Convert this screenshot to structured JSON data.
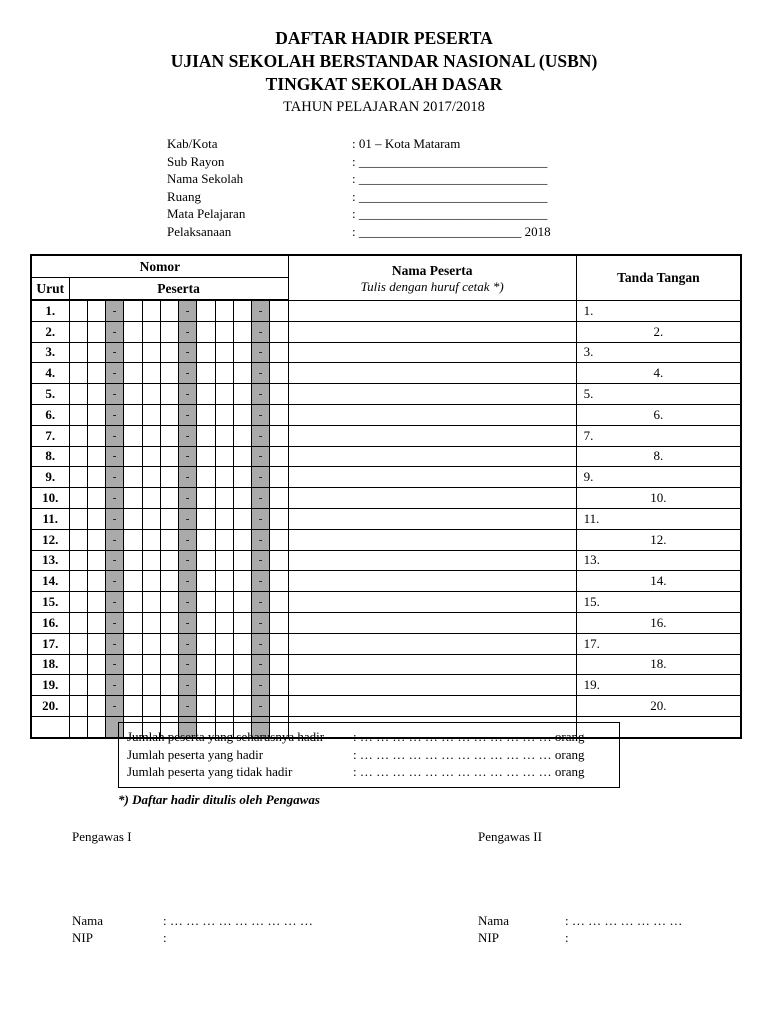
{
  "title": {
    "line1": "DAFTAR HADIR PESERTA",
    "line2": "UJIAN SEKOLAH BERSTANDAR NASIONAL (USBN)",
    "line3": "TINGKAT SEKOLAH DASAR",
    "line4": "TAHUN PELAJARAN 2017/2018"
  },
  "form_fields": [
    {
      "label": "Kab/Kota",
      "value": ": 01 – Kota Mataram"
    },
    {
      "label": "Sub Rayon",
      "value": ": _____________________________"
    },
    {
      "label": "Nama Sekolah",
      "value": ": _____________________________"
    },
    {
      "label": "Ruang",
      "value": ": _____________________________"
    },
    {
      "label": "Mata Pelajaran",
      "value": ": _____________________________"
    },
    {
      "label": "Pelaksanaan",
      "value": ": _________________________ 2018"
    }
  ],
  "table": {
    "header": {
      "nomor": "Nomor",
      "urut": "Urut",
      "peserta": "Peserta",
      "nama_peserta": "Nama Peserta",
      "nama_note": "Tulis dengan huruf cetak *)",
      "tanda_tangan": "Tanda Tangan"
    },
    "dash": "-",
    "gray_color": "#aaaaaa",
    "num_code_cells": 12,
    "dash_cell_indexes": [
      2,
      6,
      10
    ],
    "rows": [
      {
        "no": "1.",
        "sign": "1.",
        "sign_align": "left"
      },
      {
        "no": "2.",
        "sign": "2.",
        "sign_align": "center"
      },
      {
        "no": "3.",
        "sign": "3.",
        "sign_align": "left"
      },
      {
        "no": "4.",
        "sign": "4.",
        "sign_align": "center"
      },
      {
        "no": "5.",
        "sign": "5.",
        "sign_align": "left"
      },
      {
        "no": "6.",
        "sign": "6.",
        "sign_align": "center"
      },
      {
        "no": "7.",
        "sign": "7.",
        "sign_align": "left"
      },
      {
        "no": "8.",
        "sign": "8.",
        "sign_align": "center"
      },
      {
        "no": "9.",
        "sign": "9.",
        "sign_align": "left"
      },
      {
        "no": "10.",
        "sign": "10.",
        "sign_align": "center"
      },
      {
        "no": "11.",
        "sign": "11.",
        "sign_align": "left"
      },
      {
        "no": "12.",
        "sign": "12.",
        "sign_align": "center"
      },
      {
        "no": "13.",
        "sign": "13.",
        "sign_align": "left"
      },
      {
        "no": "14.",
        "sign": "14.",
        "sign_align": "center"
      },
      {
        "no": "15.",
        "sign": "15.",
        "sign_align": "left"
      },
      {
        "no": "16.",
        "sign": "16.",
        "sign_align": "center"
      },
      {
        "no": "17.",
        "sign": "17.",
        "sign_align": "left"
      },
      {
        "no": "18.",
        "sign": "18.",
        "sign_align": "center"
      },
      {
        "no": "19.",
        "sign": "19.",
        "sign_align": "left"
      },
      {
        "no": "20.",
        "sign": "20.",
        "sign_align": "center"
      },
      {
        "no": "",
        "sign": "",
        "sign_align": "left"
      }
    ]
  },
  "summary": {
    "rows": [
      {
        "label": "Jumlah peserta yang seharusnya hadir",
        "value": ": … … … … … … … … … … … … orang"
      },
      {
        "label": "Jumlah peserta yang hadir",
        "value": ": … … … … … … … … … … … … orang"
      },
      {
        "label": "Jumlah peserta yang tidak hadir",
        "value": ": … … … … … … … … … … … … orang"
      }
    ]
  },
  "footnote": "*) Daftar hadir ditulis oleh Pengawas",
  "signatures": {
    "left": {
      "title": "Pengawas I",
      "nama_label": "Nama",
      "nama_value": ": … … … … … … … … …",
      "nip_label": "NIP",
      "nip_value": ":"
    },
    "right": {
      "title": "Pengawas II",
      "nama_label": "Nama",
      "nama_value": ": … … … … … … …",
      "nip_label": "NIP",
      "nip_value": ":"
    }
  }
}
